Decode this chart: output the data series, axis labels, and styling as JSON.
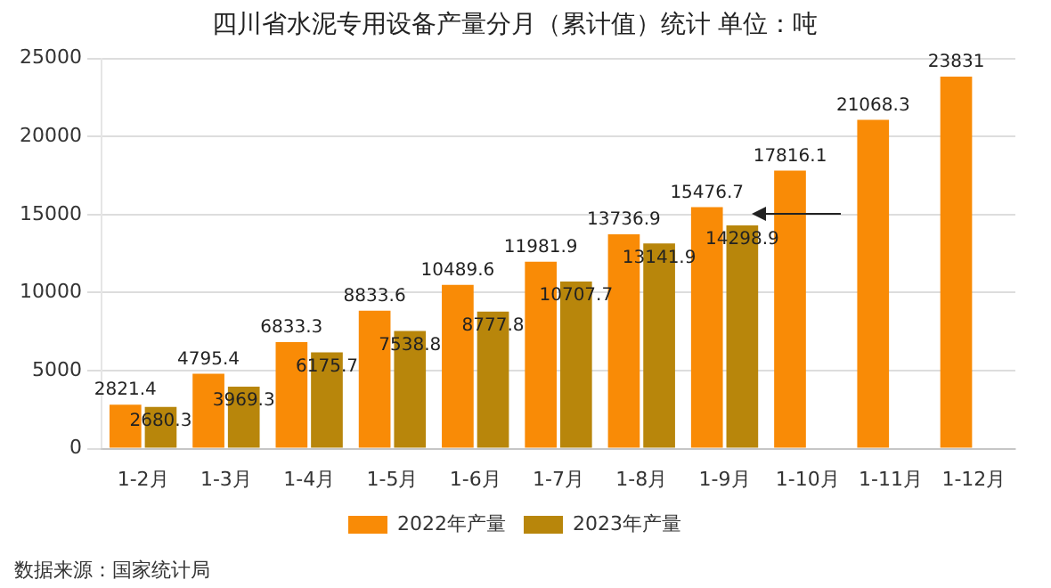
{
  "chart_data": {
    "type": "bar",
    "title": "四川省水泥专用设备产量分月（累计值）统计 单位：吨",
    "categories": [
      "1-2月",
      "1-3月",
      "1-4月",
      "1-5月",
      "1-6月",
      "1-7月",
      "1-8月",
      "1-9月",
      "1-10月",
      "1-11月",
      "1-12月"
    ],
    "series": [
      {
        "name": "2022年产量",
        "color": "#f98b06",
        "values": [
          2821.4,
          4795.4,
          6833.3,
          8833.6,
          10489.6,
          11981.9,
          13736.9,
          15476.7,
          17816.1,
          21068.3,
          23831
        ]
      },
      {
        "name": "2023年产量",
        "color": "#b8860b",
        "values": [
          2680.3,
          3969.3,
          6175.7,
          7538.8,
          8777.8,
          10707.7,
          13141.9,
          14298.9,
          null,
          null,
          null
        ]
      }
    ],
    "ylim": [
      0,
      25000
    ],
    "yticks": [
      0,
      5000,
      10000,
      15000,
      20000,
      25000
    ],
    "grid": "y",
    "legend": "bottom",
    "data_labels": true,
    "annotations": [
      "数据来源：国家统计局"
    ]
  }
}
